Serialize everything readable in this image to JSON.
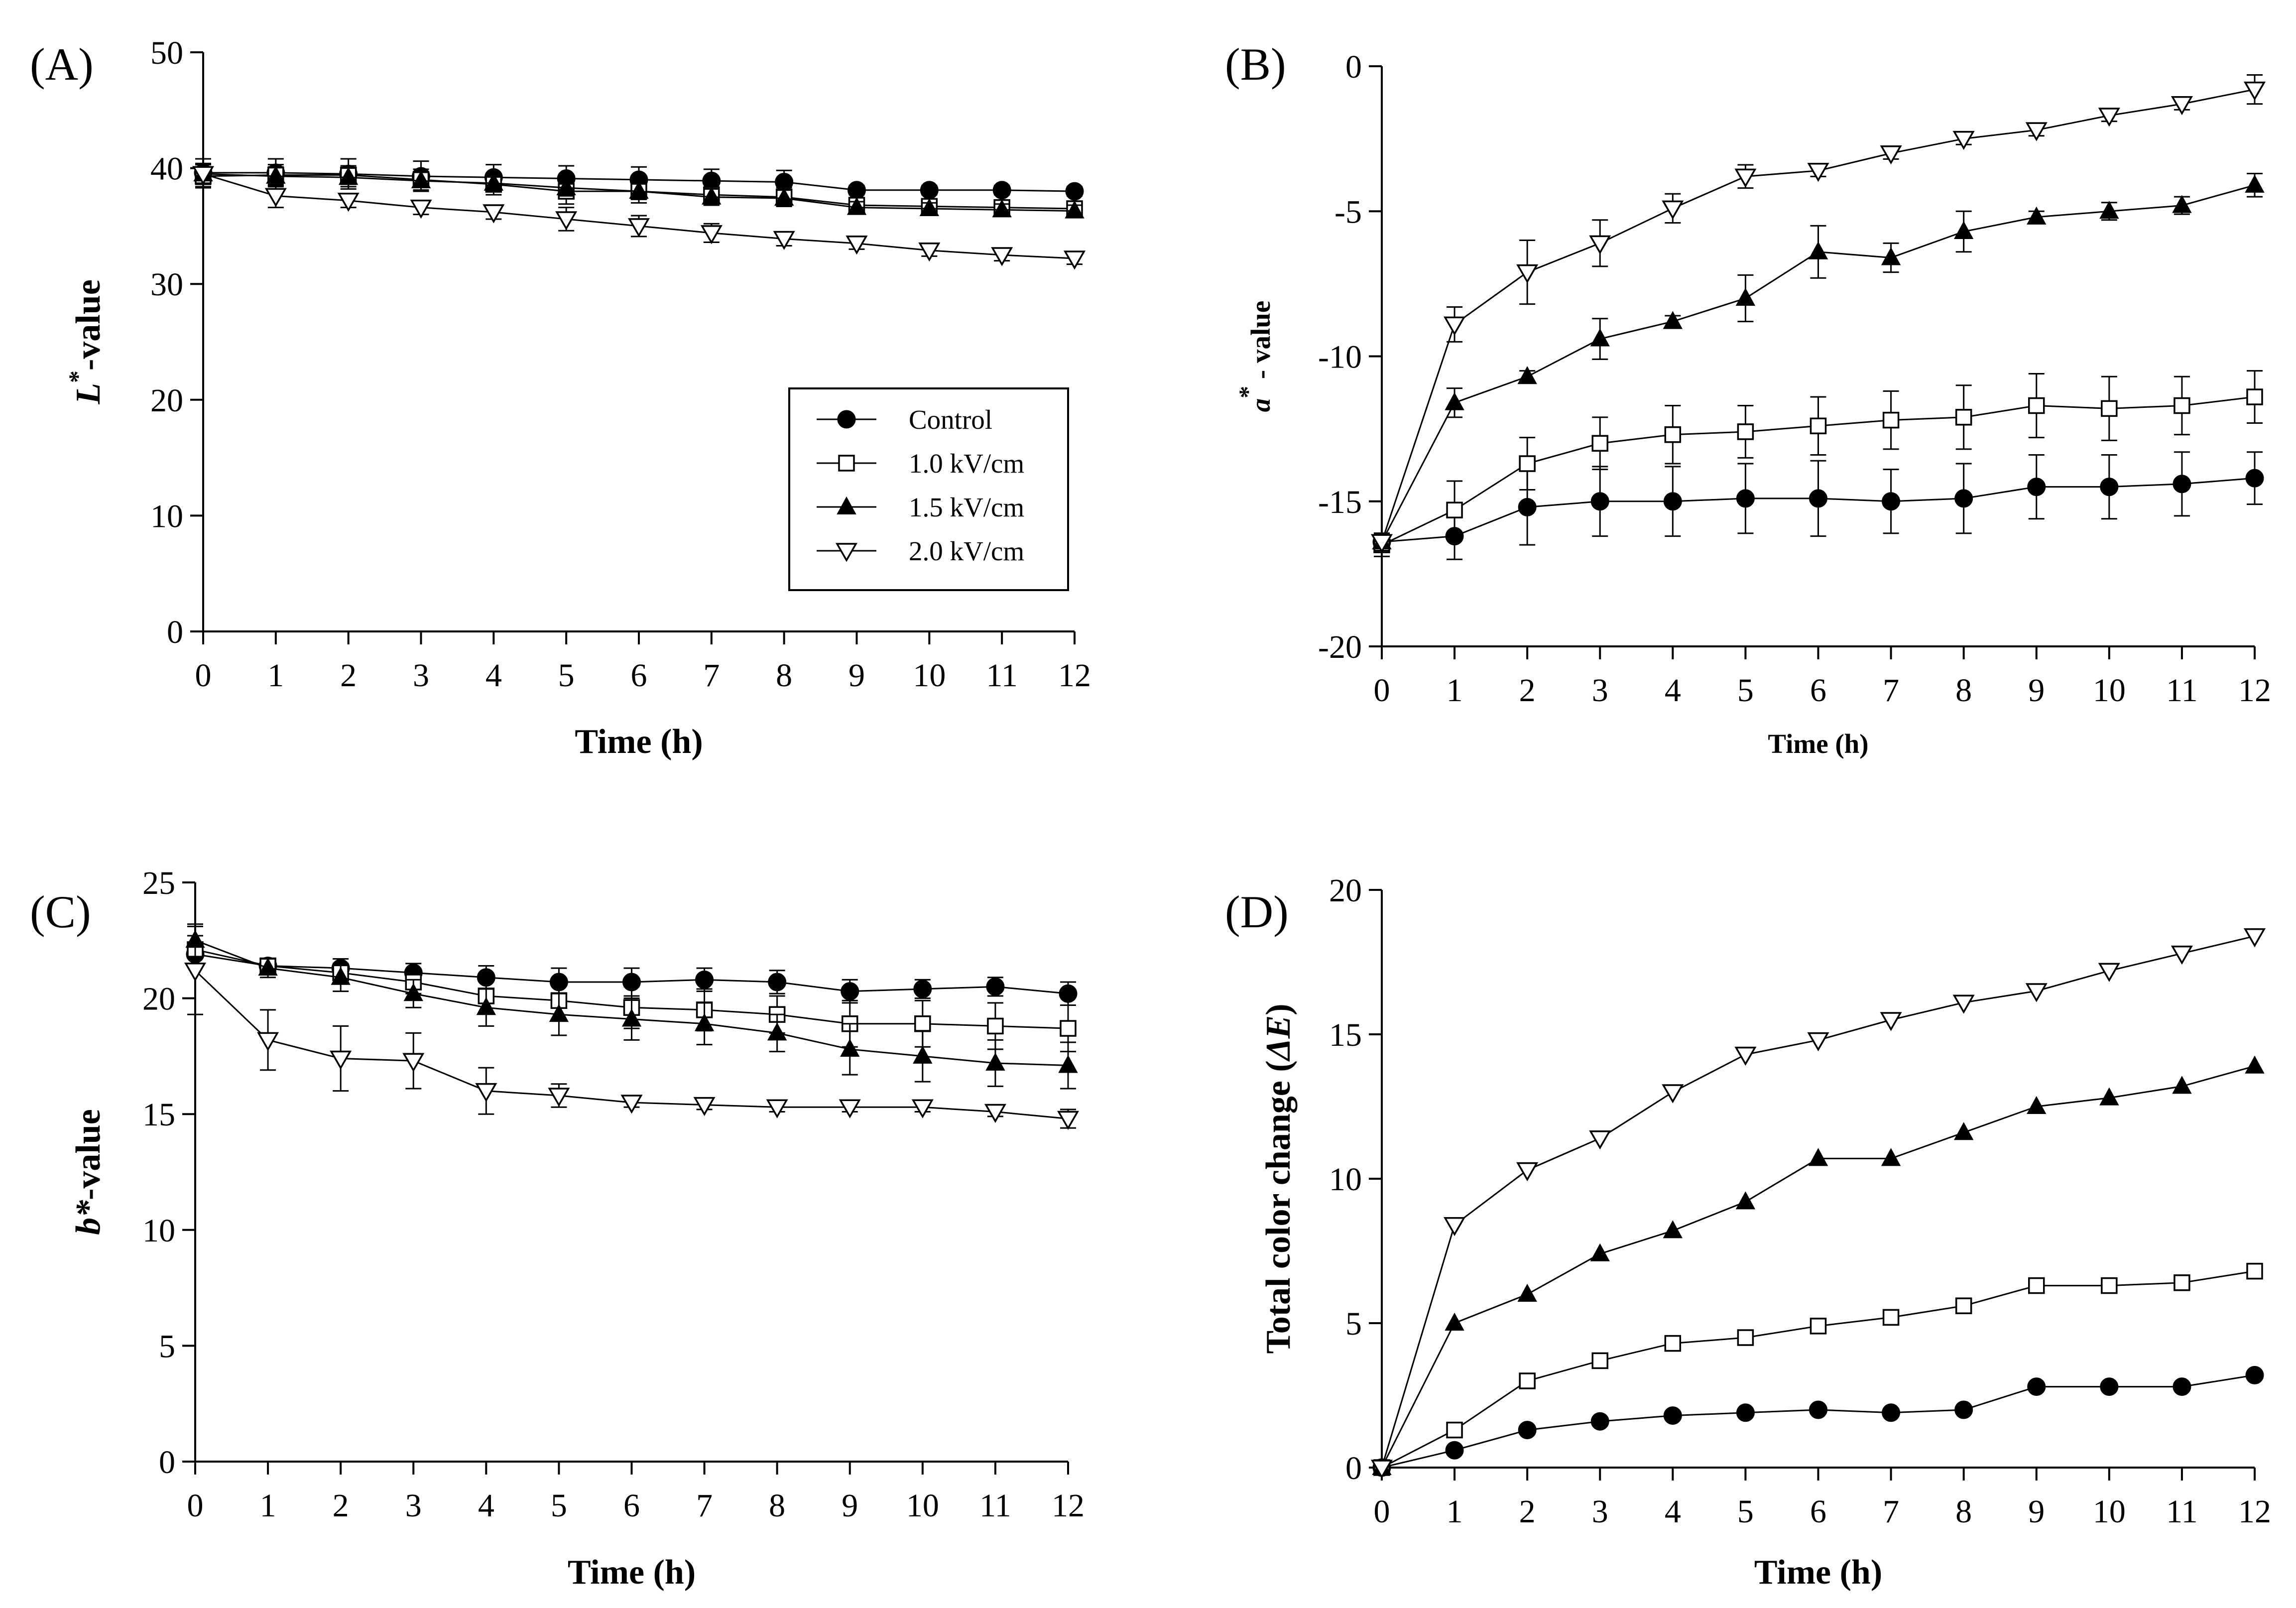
{
  "legend": {
    "entries": [
      "Control",
      "1.0 kV/cm",
      "1.5 kV/cm",
      "2.0 kV/cm"
    ]
  },
  "chart_data": [
    {
      "id": "A",
      "panel_label": "(A)",
      "type": "line",
      "xlabel": "Time (h)",
      "ylabel_main": "L",
      "ylabel_sup": "*",
      "ylabel_rest": "-value",
      "x": [
        0,
        1,
        2,
        3,
        4,
        5,
        6,
        7,
        8,
        9,
        10,
        11,
        12
      ],
      "xticks": [
        "0",
        "1",
        "2",
        "3",
        "4",
        "5",
        "6",
        "7",
        "8",
        "9",
        "10",
        "11",
        "12"
      ],
      "ylim": [
        0,
        50
      ],
      "yticks": [
        0,
        10,
        20,
        30,
        40,
        50
      ],
      "legend_position": "center-right",
      "series": [
        {
          "name": "Control",
          "marker": "circle",
          "values": [
            39.6,
            39.6,
            39.5,
            39.3,
            39.2,
            39.1,
            39.0,
            38.9,
            38.8,
            38.1,
            38.1,
            38.1,
            38.0
          ],
          "err": [
            1.2,
            1.2,
            1.3,
            1.3,
            1.1,
            1.1,
            1.1,
            1.0,
            1.0,
            0.4,
            0.4,
            0.4,
            0.4
          ]
        },
        {
          "name": "1.0 kV/cm",
          "marker": "square",
          "values": [
            39.3,
            39.4,
            39.4,
            39.0,
            38.6,
            38.0,
            38.0,
            37.7,
            37.5,
            36.8,
            36.7,
            36.6,
            36.5
          ],
          "err": [
            1.0,
            0.9,
            0.8,
            0.9,
            0.9,
            1.1,
            1.0,
            0.9,
            0.8,
            0.5,
            0.5,
            0.5,
            0.5
          ]
        },
        {
          "name": "1.5 kV/cm",
          "marker": "triangle-up",
          "values": [
            39.5,
            39.3,
            39.2,
            38.9,
            38.7,
            38.3,
            38.0,
            37.5,
            37.4,
            36.6,
            36.5,
            36.4,
            36.3
          ],
          "err": [
            0.9,
            0.8,
            0.8,
            0.8,
            0.7,
            0.7,
            0.7,
            0.7,
            0.7,
            0.5,
            0.5,
            0.5,
            0.5
          ]
        },
        {
          "name": "2.0 kV/cm",
          "marker": "triangle-down",
          "values": [
            39.5,
            37.6,
            37.2,
            36.6,
            36.2,
            35.6,
            35.0,
            34.4,
            33.9,
            33.5,
            32.9,
            32.5,
            32.2
          ],
          "err": [
            0.8,
            1.0,
            0.6,
            0.6,
            0.6,
            1.0,
            0.9,
            0.8,
            0.6,
            0.5,
            0.5,
            0.5,
            0.5
          ]
        }
      ]
    },
    {
      "id": "B",
      "panel_label": "(B)",
      "type": "line",
      "xlabel": "Time (h)",
      "ylabel_main": "a",
      "ylabel_sup": "*",
      "ylabel_rest": " - value",
      "x": [
        0,
        1,
        2,
        3,
        4,
        5,
        6,
        7,
        8,
        9,
        10,
        11,
        12
      ],
      "xticks": [
        "0",
        "1",
        "2",
        "3",
        "4",
        "5",
        "6",
        "7",
        "8",
        "9",
        "10",
        "11",
        "12"
      ],
      "ylim": [
        -20,
        0
      ],
      "yticks": [
        -20,
        -15,
        -10,
        -5,
        0
      ],
      "series": [
        {
          "name": "Control",
          "marker": "circle",
          "values": [
            -16.4,
            -16.2,
            -15.2,
            -15.0,
            -15.0,
            -14.9,
            -14.9,
            -15.0,
            -14.9,
            -14.5,
            -14.5,
            -14.4,
            -14.2
          ],
          "err": [
            0.3,
            0.8,
            1.3,
            1.2,
            1.2,
            1.2,
            1.3,
            1.1,
            1.2,
            1.1,
            1.1,
            1.1,
            0.9
          ]
        },
        {
          "name": "1.0 kV/cm",
          "marker": "square",
          "values": [
            -16.5,
            -15.3,
            -13.7,
            -13.0,
            -12.7,
            -12.6,
            -12.4,
            -12.2,
            -12.1,
            -11.7,
            -11.8,
            -11.7,
            -11.4
          ],
          "err": [
            0.4,
            1.0,
            0.9,
            0.9,
            1.0,
            0.9,
            1.0,
            1.0,
            1.1,
            1.1,
            1.1,
            1.0,
            0.9
          ]
        },
        {
          "name": "1.5 kV/cm",
          "marker": "triangle-up",
          "values": [
            -16.4,
            -11.6,
            -10.7,
            -9.4,
            -8.8,
            -8.0,
            -6.4,
            -6.6,
            -5.7,
            -5.2,
            -5.0,
            -4.8,
            -4.1
          ],
          "err": [
            0.3,
            0.5,
            0.2,
            0.7,
            0.2,
            0.8,
            0.9,
            0.5,
            0.7,
            0.2,
            0.3,
            0.3,
            0.4
          ]
        },
        {
          "name": "2.0 kV/cm",
          "marker": "triangle-down",
          "values": [
            -16.4,
            -8.9,
            -7.1,
            -6.1,
            -4.9,
            -3.8,
            -3.6,
            -3.0,
            -2.5,
            -2.2,
            -1.7,
            -1.3,
            -0.8
          ],
          "err": [
            0.3,
            0.6,
            1.1,
            0.8,
            0.5,
            0.4,
            0.2,
            0.2,
            0.2,
            0.2,
            0.2,
            0.2,
            0.5
          ]
        }
      ]
    },
    {
      "id": "C",
      "panel_label": "(C)",
      "type": "line",
      "xlabel": "Time (h)",
      "ylabel_main": "b*",
      "ylabel_sup": "",
      "ylabel_rest": "-value",
      "x": [
        0,
        1,
        2,
        3,
        4,
        5,
        6,
        7,
        8,
        9,
        10,
        11,
        12
      ],
      "xticks": [
        "0",
        "1",
        "2",
        "3",
        "4",
        "5",
        "6",
        "7",
        "8",
        "9",
        "10",
        "11",
        "12"
      ],
      "ylim": [
        0,
        25
      ],
      "yticks": [
        0,
        5,
        10,
        15,
        20,
        25
      ],
      "series": [
        {
          "name": "Control",
          "marker": "circle",
          "values": [
            21.9,
            21.4,
            21.3,
            21.1,
            20.9,
            20.7,
            20.7,
            20.8,
            20.7,
            20.3,
            20.4,
            20.5,
            20.2
          ],
          "err": [
            0.5,
            0.3,
            0.4,
            0.4,
            0.5,
            0.6,
            0.6,
            0.5,
            0.5,
            0.5,
            0.4,
            0.4,
            0.5
          ]
        },
        {
          "name": "1.0 kV/cm",
          "marker": "square",
          "values": [
            22.1,
            21.4,
            21.1,
            20.7,
            20.1,
            19.9,
            19.6,
            19.5,
            19.3,
            18.9,
            18.9,
            18.8,
            18.7
          ],
          "err": [
            0.6,
            0.3,
            0.4,
            0.5,
            0.7,
            0.8,
            0.9,
            0.9,
            0.8,
            1.0,
            1.0,
            1.0,
            1.0
          ]
        },
        {
          "name": "1.5 kV/cm",
          "marker": "triangle-up",
          "values": [
            22.5,
            21.3,
            20.9,
            20.2,
            19.6,
            19.3,
            19.1,
            18.9,
            18.5,
            17.8,
            17.5,
            17.2,
            17.1
          ],
          "err": [
            0.7,
            0.4,
            0.6,
            0.6,
            0.8,
            0.9,
            0.9,
            0.9,
            0.8,
            1.1,
            1.1,
            1.0,
            1.0
          ]
        },
        {
          "name": "2.0 kV/cm",
          "marker": "triangle-down",
          "values": [
            21.2,
            18.2,
            17.4,
            17.3,
            16.0,
            15.8,
            15.5,
            15.4,
            15.3,
            15.3,
            15.3,
            15.1,
            14.8
          ],
          "err": [
            1.9,
            1.3,
            1.4,
            1.2,
            1.0,
            0.5,
            0.2,
            0.2,
            0.2,
            0.2,
            0.2,
            0.2,
            0.4
          ]
        }
      ]
    },
    {
      "id": "D",
      "panel_label": "(D)",
      "type": "line",
      "xlabel": "Time (h)",
      "ylabel_main": "Total color change (",
      "ylabel_sup": "",
      "ylabel_italic": "ΔE",
      "ylabel_rest": ")",
      "x": [
        0,
        1,
        2,
        3,
        4,
        5,
        6,
        7,
        8,
        9,
        10,
        11,
        12
      ],
      "xticks": [
        "0",
        "1",
        "2",
        "3",
        "4",
        "5",
        "6",
        "7",
        "8",
        "9",
        "10",
        "11",
        "12"
      ],
      "ylim": [
        0,
        20
      ],
      "yticks": [
        0,
        5,
        10,
        15,
        20
      ],
      "series": [
        {
          "name": "Control",
          "marker": "circle",
          "values": [
            0,
            0.6,
            1.3,
            1.6,
            1.8,
            1.9,
            2.0,
            1.9,
            2.0,
            2.8,
            2.8,
            2.8,
            3.2
          ],
          "err": []
        },
        {
          "name": "1.0 kV/cm",
          "marker": "square",
          "values": [
            0,
            1.3,
            3.0,
            3.7,
            4.3,
            4.5,
            4.9,
            5.2,
            5.6,
            6.3,
            6.3,
            6.4,
            6.8
          ],
          "err": []
        },
        {
          "name": "1.5 kV/cm",
          "marker": "triangle-up",
          "values": [
            0,
            5.0,
            6.0,
            7.4,
            8.2,
            9.2,
            10.7,
            10.7,
            11.6,
            12.5,
            12.8,
            13.2,
            13.9
          ],
          "err": []
        },
        {
          "name": "2.0 kV/cm",
          "marker": "triangle-down",
          "values": [
            0,
            8.4,
            10.3,
            11.4,
            13.0,
            14.3,
            14.8,
            15.5,
            16.1,
            16.5,
            17.2,
            17.8,
            18.4
          ],
          "err": []
        }
      ]
    }
  ]
}
